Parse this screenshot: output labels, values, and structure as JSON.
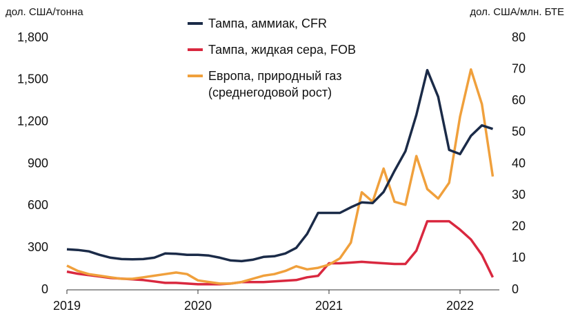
{
  "chart_data": {
    "type": "line",
    "ylabel": "дол. США/тонна",
    "y2label": "дол. США/млн. БТЕ",
    "x": [
      2019,
      2019.083,
      2019.167,
      2019.25,
      2019.333,
      2019.417,
      2019.5,
      2019.583,
      2019.667,
      2019.75,
      2019.833,
      2019.917,
      2020,
      2020.083,
      2020.167,
      2020.25,
      2020.333,
      2020.417,
      2020.5,
      2020.583,
      2020.667,
      2020.75,
      2020.833,
      2020.917,
      2021,
      2021.083,
      2021.167,
      2021.25,
      2021.333,
      2021.417,
      2021.5,
      2021.583,
      2021.667,
      2021.75,
      2021.833,
      2021.917,
      2022,
      2022.083,
      2022.167,
      2022.25
    ],
    "xlim": [
      2019,
      2022.3
    ],
    "xticks": [
      2019,
      2020,
      2021,
      2022
    ],
    "ylim": [
      0,
      1800
    ],
    "yticks": [
      0,
      300,
      600,
      900,
      {
        "value": 1200,
        "label": "1,200"
      },
      {
        "value": 1500,
        "label": "1,500"
      },
      {
        "value": 1800,
        "label": "1,800"
      }
    ],
    "y2lim": [
      0,
      80
    ],
    "y2ticks": [
      0,
      10,
      20,
      30,
      40,
      50,
      60,
      70,
      80
    ],
    "series": [
      {
        "name": "Тампа, аммиак, CFR",
        "color": "#1b2b48",
        "values": [
          290,
          285,
          275,
          250,
          230,
          220,
          218,
          220,
          230,
          260,
          258,
          250,
          250,
          245,
          230,
          210,
          205,
          215,
          235,
          240,
          260,
          300,
          400,
          550,
          550,
          550,
          590,
          625,
          620,
          700,
          850,
          990,
          1250,
          1570,
          1380,
          1000,
          970,
          1100,
          1175,
          1150
        ]
      },
      {
        "name": "Тампа, жидкая сера, FOB",
        "color": "#d9283f",
        "values": [
          130,
          115,
          105,
          95,
          85,
          80,
          75,
          70,
          60,
          50,
          50,
          45,
          40,
          40,
          40,
          45,
          55,
          55,
          55,
          60,
          65,
          70,
          90,
          100,
          190,
          190,
          195,
          200,
          195,
          190,
          185,
          185,
          280,
          490,
          490,
          490,
          430,
          360,
          250,
          90
        ]
      },
      {
        "name": "Европа, природный газ (среднегодовой рост)",
        "color": "#f0a03c",
        "axis": "y2",
        "values": [
          7.7,
          6,
          5,
          4.5,
          4,
          3.5,
          3.5,
          4,
          4.5,
          5,
          5.5,
          5,
          3,
          2.5,
          2,
          2,
          2.5,
          3.5,
          4.5,
          5,
          6,
          7.5,
          6.5,
          7,
          8,
          10,
          15,
          31,
          28,
          38.5,
          28,
          27,
          42.5,
          32,
          29,
          34,
          55,
          70,
          59,
          36
        ]
      }
    ]
  }
}
